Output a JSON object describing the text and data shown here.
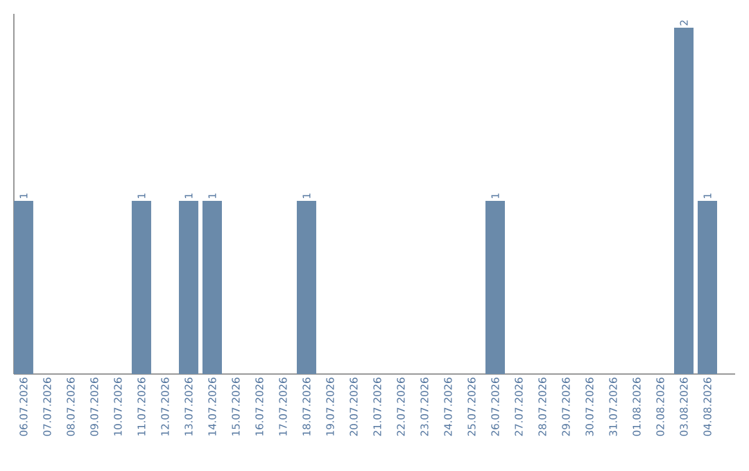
{
  "chart_data": {
    "type": "bar",
    "categories": [
      "06.07.2026",
      "07.07.2026",
      "08.07.2026",
      "09.07.2026",
      "10.07.2026",
      "11.07.2026",
      "12.07.2026",
      "13.07.2026",
      "14.07.2026",
      "15.07.2026",
      "16.07.2026",
      "17.07.2026",
      "18.07.2026",
      "19.07.2026",
      "20.07.2026",
      "21.07.2026",
      "22.07.2026",
      "23.07.2026",
      "24.07.2026",
      "25.07.2026",
      "26.07.2026",
      "27.07.2026",
      "28.07.2026",
      "29.07.2026",
      "30.07.2026",
      "31.07.2026",
      "01.08.2026",
      "02.08.2026",
      "03.08.2026",
      "04.08.2026"
    ],
    "values": [
      1,
      0,
      0,
      0,
      0,
      1,
      0,
      1,
      1,
      0,
      0,
      0,
      1,
      0,
      0,
      0,
      0,
      0,
      0,
      0,
      1,
      0,
      0,
      0,
      0,
      0,
      0,
      0,
      2,
      1
    ],
    "value_labels": [
      "1",
      null,
      null,
      null,
      null,
      "1",
      null,
      "1",
      "1",
      null,
      null,
      null,
      "1",
      null,
      null,
      null,
      null,
      null,
      null,
      null,
      "1",
      null,
      null,
      null,
      null,
      null,
      null,
      null,
      "2",
      "1"
    ],
    "color": "#6a8aaa",
    "tick_labels": "x"
  }
}
